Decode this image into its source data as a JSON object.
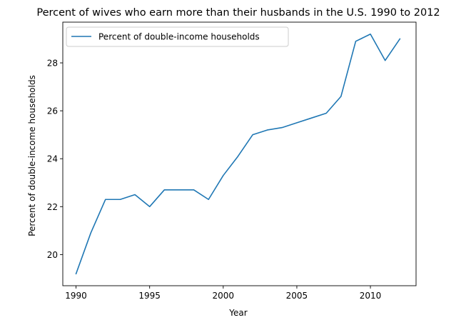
{
  "chart_data": {
    "type": "line",
    "title": "Percent of wives who earn more than their husbands in the U.S. 1990 to 2012",
    "xlabel": "Year",
    "ylabel": "Percent of double-income households",
    "xlim": [
      1989.1,
      2013.1
    ],
    "ylim": [
      18.7,
      29.7
    ],
    "xticks": [
      1990,
      1995,
      2000,
      2005,
      2010
    ],
    "yticks": [
      20,
      22,
      24,
      26,
      28
    ],
    "grid": false,
    "legend": "upper left",
    "x": [
      1990,
      1991,
      1992,
      1993,
      1994,
      1995,
      1996,
      1997,
      1998,
      1999,
      2000,
      2001,
      2002,
      2003,
      2004,
      2005,
      2006,
      2007,
      2008,
      2009,
      2010,
      2011,
      2012
    ],
    "series": [
      {
        "name": "Percent of double-income households",
        "color": "#1f77b4",
        "values": [
          19.2,
          20.9,
          22.3,
          22.3,
          22.5,
          22.0,
          22.7,
          22.7,
          22.7,
          22.3,
          23.3,
          24.1,
          25.0,
          25.2,
          25.3,
          25.5,
          25.7,
          25.9,
          26.6,
          28.9,
          29.2,
          28.1,
          29.0
        ]
      }
    ]
  }
}
